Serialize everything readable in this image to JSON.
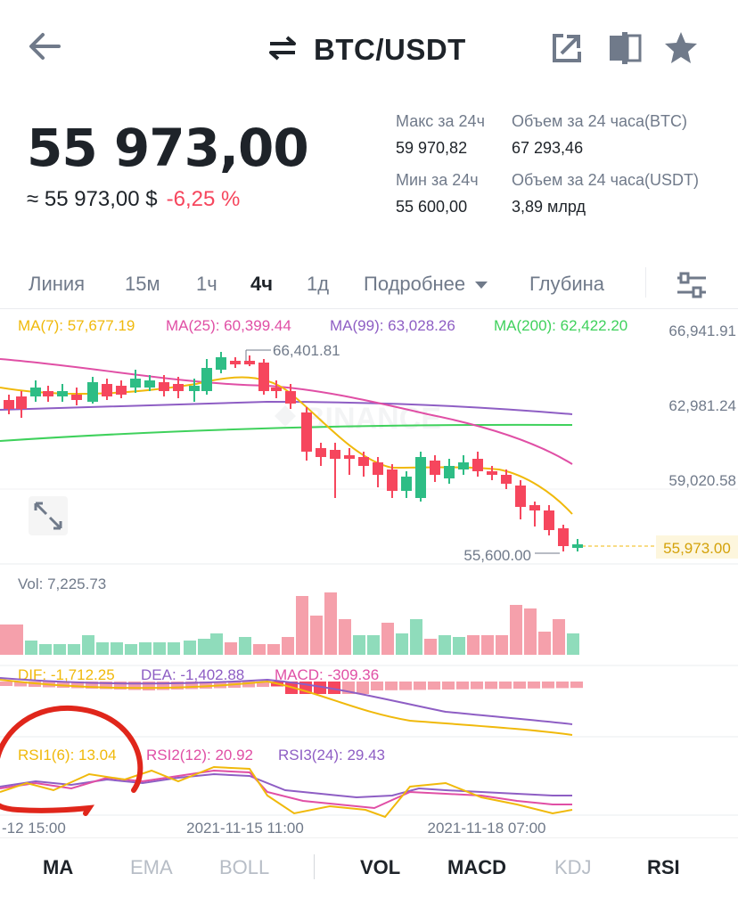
{
  "header": {
    "pair": "BTC/USDT",
    "icons": [
      "back-arrow-icon",
      "swap-icon",
      "share-icon",
      "layout-icon",
      "star-icon"
    ]
  },
  "ticker": {
    "last_price": "55 973,00",
    "price_usd": "≈ 55 973,00 $",
    "change": "-6,25 %",
    "high_label": "Макс за 24ч",
    "high_value": "59 970,82",
    "low_label": "Мин за 24ч",
    "low_value": "55 600,00",
    "vol_btc_label": "Объем за 24 часа(BTC)",
    "vol_btc_value": "67 293,46",
    "vol_usdt_label": "Объем за 24 часа(USDT)",
    "vol_usdt_value": "3,89 млрд"
  },
  "tabs": {
    "line": "Линия",
    "m15": "15м",
    "h1": "1ч",
    "h4": "4ч",
    "d1": "1д",
    "more": "Подробнее",
    "depth": "Глубина"
  },
  "chart": {
    "ma7": "MA(7): 57,677.19",
    "ma25": "MA(25): 60,399.44",
    "ma99": "MA(99): 63,028.26",
    "ma200": "MA(200): 62,422.20",
    "y_ticks": [
      "66,941.91",
      "62,981.24",
      "59,020.58"
    ],
    "high_marker": "66,401.81",
    "low_marker": "55,600.00",
    "last_price_tag": "55,973.00",
    "watermark": "BINANCE",
    "vol_label": "Vol: 7,225.73",
    "dif": "DIF: -1,712.25",
    "dea": "DEA: -1,402.88",
    "macd": "MACD: -309.36",
    "rsi1": "RSI1(6): 13.04",
    "rsi2": "RSI2(12): 20.92",
    "rsi3": "RSI3(24): 29.43",
    "x_ticks": [
      "-12 15:00",
      "2021-11-15 11:00",
      "2021-11-18 07:00"
    ],
    "colors": {
      "up": "#2ebd85",
      "down": "#f6465d",
      "ma7": "#f0b90b",
      "ma25": "#e04fa5",
      "ma99": "#8e5ec4",
      "ma200": "#3fd15c",
      "annotation": "#e0261b"
    }
  },
  "indicators": {
    "ma": "MA",
    "ema": "EMA",
    "boll": "BOLL",
    "vol": "VOL",
    "macd": "MACD",
    "kdj": "KDJ",
    "rsi": "RSI"
  }
}
